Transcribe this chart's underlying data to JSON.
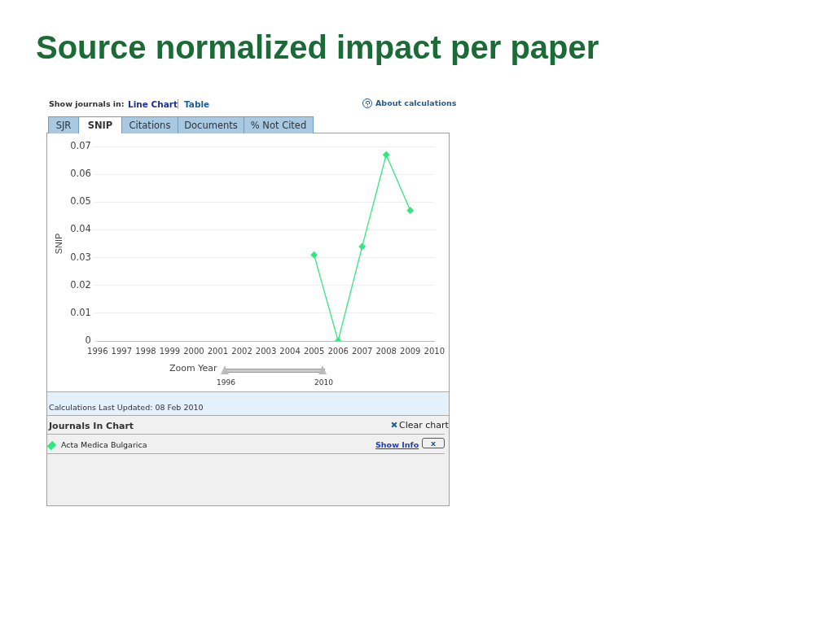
{
  "chart_data": {
    "type": "line",
    "title": "Source normalized impact per paper",
    "ylabel": "SNIP",
    "categories": [
      "1996",
      "1997",
      "1998",
      "1999",
      "2000",
      "2001",
      "2002",
      "2003",
      "2004",
      "2005",
      "2006",
      "2007",
      "2008",
      "2009",
      "2010"
    ],
    "series": [
      {
        "name": "Acta Medica Bulgarica",
        "color": "#33e67f",
        "values": [
          null,
          null,
          null,
          null,
          null,
          null,
          null,
          null,
          null,
          0.031,
          0,
          0.034,
          0.067,
          0.047,
          null
        ]
      }
    ],
    "ylim": [
      0,
      0.07
    ],
    "yticks": [
      0,
      0.01,
      0.02,
      0.03,
      0.04,
      0.05,
      0.06,
      0.07
    ],
    "grid": "y",
    "marker": "diamond",
    "line_style": "solid",
    "legend": "bottom",
    "annotations": [
      "Show journals in:",
      "Line Chart",
      "Table",
      "About calculations",
      "SJR",
      "SNIP",
      "Citations",
      "Documents",
      "% Not Cited",
      "Zoom Year",
      "1996",
      "2010",
      "Calculations Last Updated: 08 Feb 2010",
      "Journals In Chart",
      "Clear chart",
      "Show Info",
      "x"
    ]
  }
}
